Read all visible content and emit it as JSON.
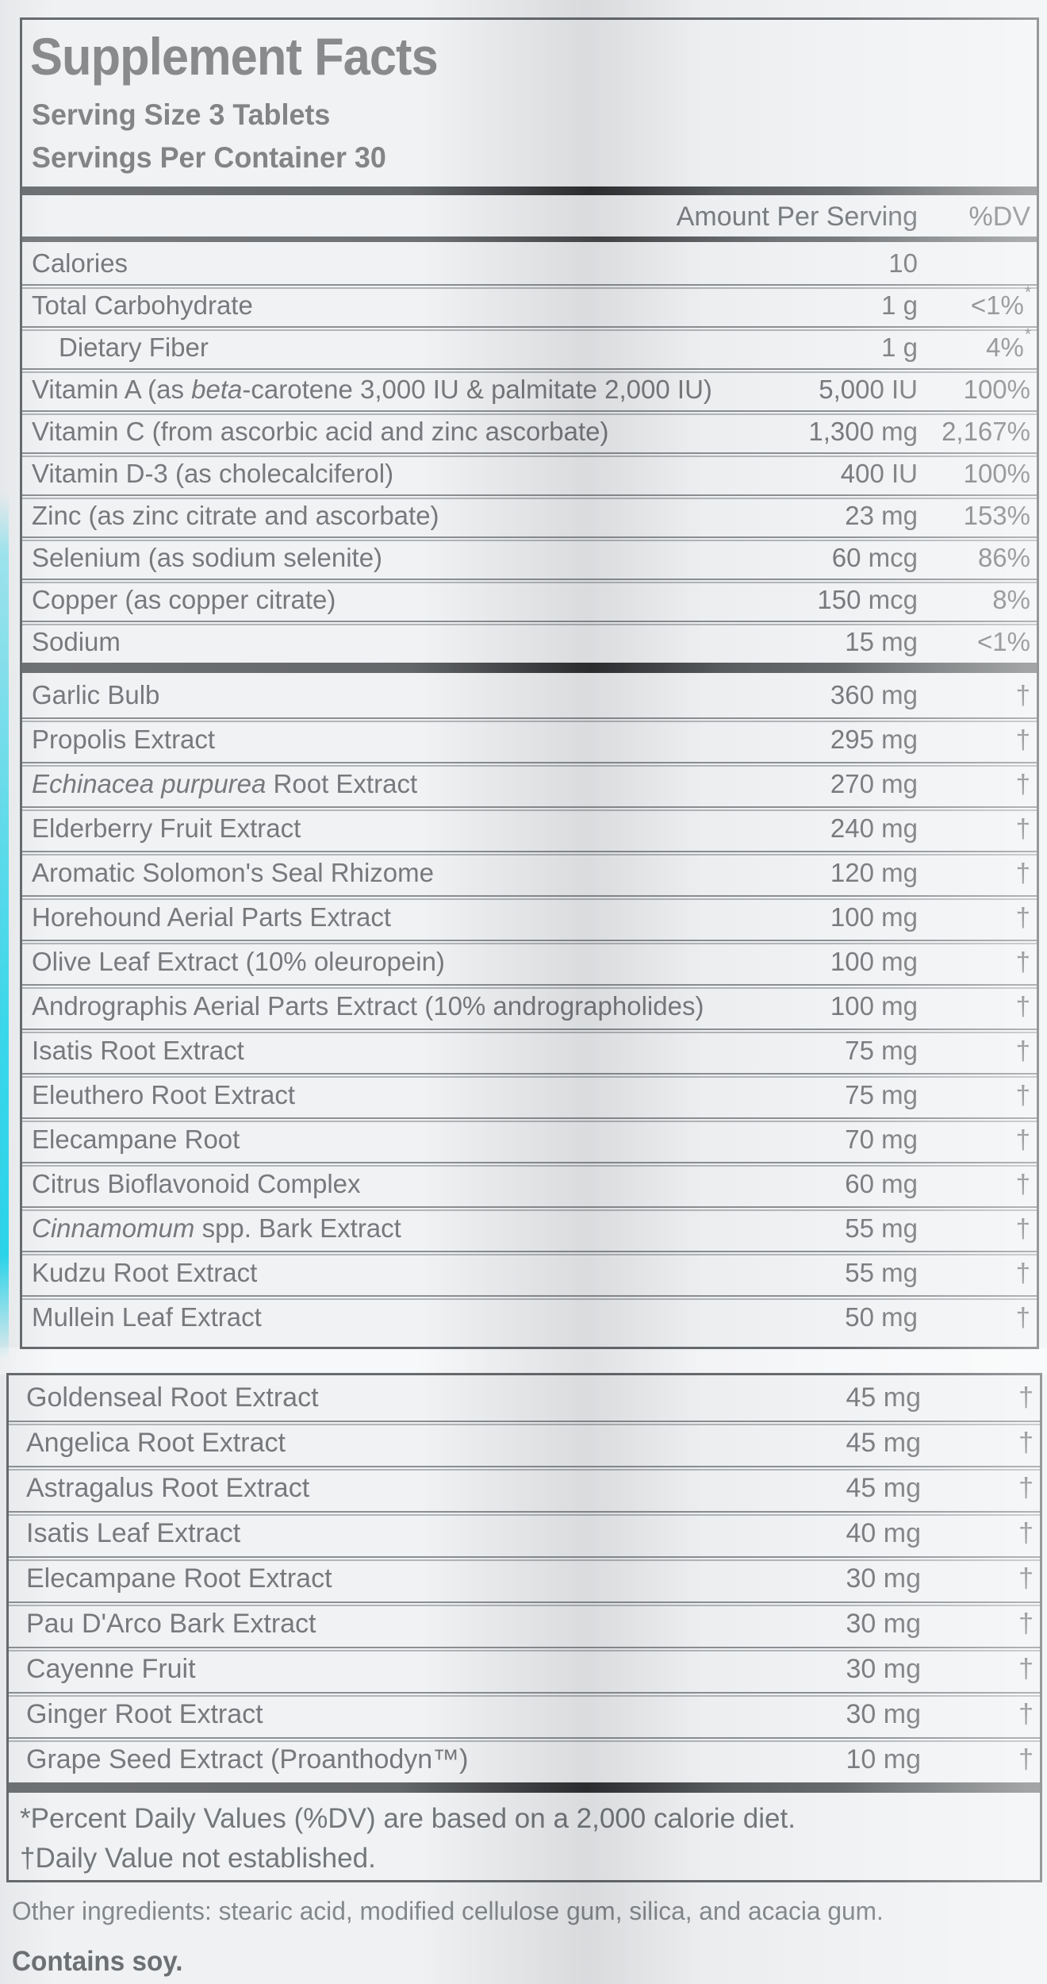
{
  "panel": {
    "title": "Supplement Facts",
    "serving_size": "Serving Size 3 Tablets",
    "servings_per_container": "Servings Per Container 30",
    "columns": {
      "amount": "Amount Per Serving",
      "dv": "%DV"
    }
  },
  "nutrients": [
    {
      "name": "Calories",
      "amount": "10",
      "dv": ""
    },
    {
      "name": "Total Carbohydrate",
      "amount": "1 g",
      "dv": "<1%",
      "sup": "*"
    },
    {
      "name": "Dietary Fiber",
      "amount": "1 g",
      "dv": "4%",
      "sup": "*",
      "indent": true
    },
    {
      "name": [
        {
          "t": "Vitamin A (as "
        },
        {
          "t": "beta",
          "i": true
        },
        {
          "t": "-carotene 3,000 IU & palmitate 2,000 IU)"
        }
      ],
      "amount": "5,000 IU",
      "dv": "100%"
    },
    {
      "name": "Vitamin C (from ascorbic acid and zinc ascorbate)",
      "amount": "1,300 mg",
      "dv": "2,167%"
    },
    {
      "name": "Vitamin D-3 (as cholecalciferol)",
      "amount": "400 IU",
      "dv": "100%"
    },
    {
      "name": "Zinc (as zinc citrate and ascorbate)",
      "amount": "23 mg",
      "dv": "153%"
    },
    {
      "name": "Selenium (as sodium selenite)",
      "amount": "60 mcg",
      "dv": "86%"
    },
    {
      "name": "Copper (as copper citrate)",
      "amount": "150 mcg",
      "dv": "8%"
    },
    {
      "name": "Sodium",
      "amount": "15 mg",
      "dv": "<1%"
    }
  ],
  "herbs_top": [
    {
      "name": "Garlic Bulb",
      "amount": "360 mg",
      "dv": "†"
    },
    {
      "name": "Propolis Extract",
      "amount": "295 mg",
      "dv": "†"
    },
    {
      "name": [
        {
          "t": "Echinacea purpurea",
          "i": true
        },
        {
          "t": " Root Extract"
        }
      ],
      "amount": "270 mg",
      "dv": "†"
    },
    {
      "name": "Elderberry Fruit Extract",
      "amount": "240 mg",
      "dv": "†"
    },
    {
      "name": "Aromatic Solomon's Seal Rhizome",
      "amount": "120 mg",
      "dv": "†"
    },
    {
      "name": "Horehound Aerial Parts Extract",
      "amount": "100 mg",
      "dv": "†"
    },
    {
      "name": "Olive Leaf Extract (10% oleuropein)",
      "amount": "100 mg",
      "dv": "†"
    },
    {
      "name": "Andrographis Aerial Parts Extract (10% andrographolides)",
      "amount": "100 mg",
      "dv": "†"
    },
    {
      "name": "Isatis Root Extract",
      "amount": "75 mg",
      "dv": "†"
    },
    {
      "name": "Eleuthero Root Extract",
      "amount": "75 mg",
      "dv": "†"
    },
    {
      "name": "Elecampane Root",
      "amount": "70 mg",
      "dv": "†"
    },
    {
      "name": "Citrus Bioflavonoid Complex",
      "amount": "60 mg",
      "dv": "†"
    },
    {
      "name": [
        {
          "t": "Cinnamomum",
          "i": true
        },
        {
          "t": " spp. Bark Extract"
        }
      ],
      "amount": "55 mg",
      "dv": "†"
    },
    {
      "name": "Kudzu Root Extract",
      "amount": "55 mg",
      "dv": "†"
    },
    {
      "name": "Mullein Leaf Extract",
      "amount": "50 mg",
      "dv": "†"
    }
  ],
  "herbs_bottom": [
    {
      "name": "Goldenseal Root Extract",
      "amount": "45 mg",
      "dv": "†"
    },
    {
      "name": "Angelica Root Extract",
      "amount": "45 mg",
      "dv": "†"
    },
    {
      "name": "Astragalus Root Extract",
      "amount": "45 mg",
      "dv": "†"
    },
    {
      "name": "Isatis Leaf Extract",
      "amount": "40 mg",
      "dv": "†"
    },
    {
      "name": "Elecampane Root Extract",
      "amount": "30 mg",
      "dv": "†"
    },
    {
      "name": "Pau D'Arco Bark Extract",
      "amount": "30 mg",
      "dv": "†"
    },
    {
      "name": "Cayenne Fruit",
      "amount": "30 mg",
      "dv": "†"
    },
    {
      "name": "Ginger Root Extract",
      "amount": "30 mg",
      "dv": "†"
    },
    {
      "name": "Grape Seed Extract (Proanthodyn™)",
      "amount": "10 mg",
      "dv": "†"
    }
  ],
  "footnotes": [
    "*Percent Daily Values (%DV) are based on a 2,000 calorie diet.",
    "†Daily Value not established."
  ],
  "other_ingredients": "Other ingredients: stearic acid, modified cellulose gum, silica, and acacia gum.",
  "contains": "Contains soy.",
  "colors": {
    "accent_cyan": "#3adef2",
    "text_gray": "#77797c",
    "border_gray": "#686b6e",
    "bar_dark": "#3c3e41",
    "label_bg": "#f0f2f4",
    "page_bg": "#eff1f3"
  }
}
